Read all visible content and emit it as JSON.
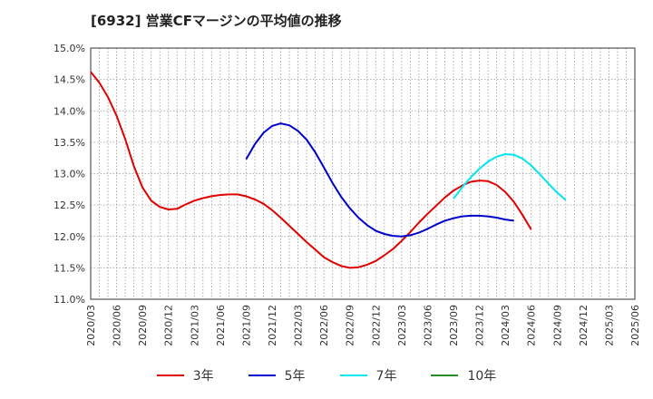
{
  "chart_data": {
    "type": "line",
    "title": "[6932]  営業CFマージンの平均値の推移",
    "xlabel": "",
    "ylabel": "",
    "ylim": [
      11.0,
      15.0
    ],
    "y_ticks": [
      "11.0%",
      "11.5%",
      "12.0%",
      "12.5%",
      "13.0%",
      "13.5%",
      "14.0%",
      "14.5%",
      "15.0%"
    ],
    "x_ticks": [
      "2020/03",
      "2020/06",
      "2020/09",
      "2020/12",
      "2021/03",
      "2021/06",
      "2021/09",
      "2021/12",
      "2022/03",
      "2022/06",
      "2022/09",
      "2022/12",
      "2023/03",
      "2023/06",
      "2023/09",
      "2023/12",
      "2024/03",
      "2024/06",
      "2024/09",
      "2024/12",
      "2025/03",
      "2025/06"
    ],
    "grid": true,
    "legend_position": "bottom",
    "series": [
      {
        "name": "3年",
        "color": "#e00000",
        "points": [
          [
            "2020/03",
            14.62
          ],
          [
            "2020/04",
            14.45
          ],
          [
            "2020/05",
            14.22
          ],
          [
            "2020/06",
            13.92
          ],
          [
            "2020/07",
            13.55
          ],
          [
            "2020/08",
            13.12
          ],
          [
            "2020/09",
            12.78
          ],
          [
            "2020/10",
            12.57
          ],
          [
            "2020/11",
            12.47
          ],
          [
            "2020/12",
            12.43
          ],
          [
            "2021/01",
            12.44
          ],
          [
            "2021/02",
            12.51
          ],
          [
            "2021/03",
            12.57
          ],
          [
            "2021/04",
            12.61
          ],
          [
            "2021/05",
            12.64
          ],
          [
            "2021/06",
            12.66
          ],
          [
            "2021/07",
            12.67
          ],
          [
            "2021/08",
            12.67
          ],
          [
            "2021/09",
            12.64
          ],
          [
            "2021/10",
            12.59
          ],
          [
            "2021/11",
            12.52
          ],
          [
            "2021/12",
            12.42
          ],
          [
            "2022/01",
            12.3
          ],
          [
            "2022/02",
            12.17
          ],
          [
            "2022/03",
            12.04
          ],
          [
            "2022/04",
            11.91
          ],
          [
            "2022/05",
            11.79
          ],
          [
            "2022/06",
            11.67
          ],
          [
            "2022/07",
            11.59
          ],
          [
            "2022/08",
            11.53
          ],
          [
            "2022/09",
            11.5
          ],
          [
            "2022/10",
            11.51
          ],
          [
            "2022/11",
            11.55
          ],
          [
            "2022/12",
            11.61
          ],
          [
            "2023/01",
            11.7
          ],
          [
            "2023/02",
            11.8
          ],
          [
            "2023/03",
            11.93
          ],
          [
            "2023/04",
            12.07
          ],
          [
            "2023/05",
            12.22
          ],
          [
            "2023/06",
            12.36
          ],
          [
            "2023/07",
            12.49
          ],
          [
            "2023/08",
            12.62
          ],
          [
            "2023/09",
            12.73
          ],
          [
            "2023/10",
            12.81
          ],
          [
            "2023/11",
            12.87
          ],
          [
            "2023/12",
            12.89
          ],
          [
            "2024/01",
            12.88
          ],
          [
            "2024/02",
            12.82
          ],
          [
            "2024/03",
            12.71
          ],
          [
            "2024/04",
            12.55
          ],
          [
            "2024/05",
            12.34
          ],
          [
            "2024/06",
            12.11
          ]
        ]
      },
      {
        "name": "5年",
        "color": "#0000cc",
        "points": [
          [
            "2021/09",
            13.23
          ],
          [
            "2021/10",
            13.47
          ],
          [
            "2021/11",
            13.65
          ],
          [
            "2021/12",
            13.76
          ],
          [
            "2022/01",
            13.8
          ],
          [
            "2022/02",
            13.77
          ],
          [
            "2022/03",
            13.68
          ],
          [
            "2022/04",
            13.54
          ],
          [
            "2022/05",
            13.34
          ],
          [
            "2022/06",
            13.1
          ],
          [
            "2022/07",
            12.85
          ],
          [
            "2022/08",
            12.63
          ],
          [
            "2022/09",
            12.45
          ],
          [
            "2022/10",
            12.3
          ],
          [
            "2022/11",
            12.18
          ],
          [
            "2022/12",
            12.09
          ],
          [
            "2023/01",
            12.04
          ],
          [
            "2023/02",
            12.01
          ],
          [
            "2023/03",
            12.0
          ],
          [
            "2023/04",
            12.02
          ],
          [
            "2023/05",
            12.06
          ],
          [
            "2023/06",
            12.12
          ],
          [
            "2023/07",
            12.19
          ],
          [
            "2023/08",
            12.25
          ],
          [
            "2023/09",
            12.29
          ],
          [
            "2023/10",
            12.32
          ],
          [
            "2023/11",
            12.33
          ],
          [
            "2023/12",
            12.33
          ],
          [
            "2024/01",
            12.32
          ],
          [
            "2024/02",
            12.3
          ],
          [
            "2024/03",
            12.27
          ],
          [
            "2024/04",
            12.25
          ]
        ]
      },
      {
        "name": "7年",
        "color": "#00e5ee",
        "points": [
          [
            "2023/09",
            12.6
          ],
          [
            "2023/10",
            12.78
          ],
          [
            "2023/11",
            12.94
          ],
          [
            "2023/12",
            13.08
          ],
          [
            "2024/01",
            13.19
          ],
          [
            "2024/02",
            13.27
          ],
          [
            "2024/03",
            13.31
          ],
          [
            "2024/04",
            13.3
          ],
          [
            "2024/05",
            13.24
          ],
          [
            "2024/06",
            13.13
          ],
          [
            "2024/07",
            12.99
          ],
          [
            "2024/08",
            12.84
          ],
          [
            "2024/09",
            12.7
          ],
          [
            "2024/10",
            12.58
          ]
        ]
      },
      {
        "name": "10年",
        "color": "#228b22",
        "points": []
      }
    ]
  }
}
